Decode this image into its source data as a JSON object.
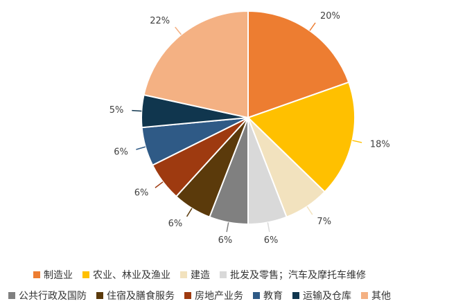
{
  "chart_data": {
    "type": "pie",
    "title": "",
    "slices": [
      {
        "label": "制造业",
        "value": 20,
        "display": "20%",
        "color": "#ED7D31"
      },
      {
        "label": "农业、林业及渔业",
        "value": 18,
        "display": "18%",
        "color": "#FFC000"
      },
      {
        "label": "建造",
        "value": 7,
        "display": "7%",
        "color": "#F2E2BE"
      },
      {
        "label": "批发及零售；汽车及摩托车维修",
        "value": 6,
        "display": "6%",
        "color": "#D9D9D9"
      },
      {
        "label": "公共行政及国防",
        "value": 6,
        "display": "6%",
        "color": "#808080"
      },
      {
        "label": "住宿及膳食服务",
        "value": 6,
        "display": "6%",
        "color": "#5B3A0B"
      },
      {
        "label": "房地产业务",
        "value": 6,
        "display": "6%",
        "color": "#9E3A10"
      },
      {
        "label": "教育",
        "value": 6,
        "display": "6%",
        "color": "#2F5A86"
      },
      {
        "label": "运输及仓库",
        "value": 5,
        "display": "5%",
        "color": "#10364E"
      },
      {
        "label": "其他",
        "value": 22,
        "display": "22%",
        "color": "#F4B183"
      }
    ],
    "legend_position": "bottom"
  }
}
